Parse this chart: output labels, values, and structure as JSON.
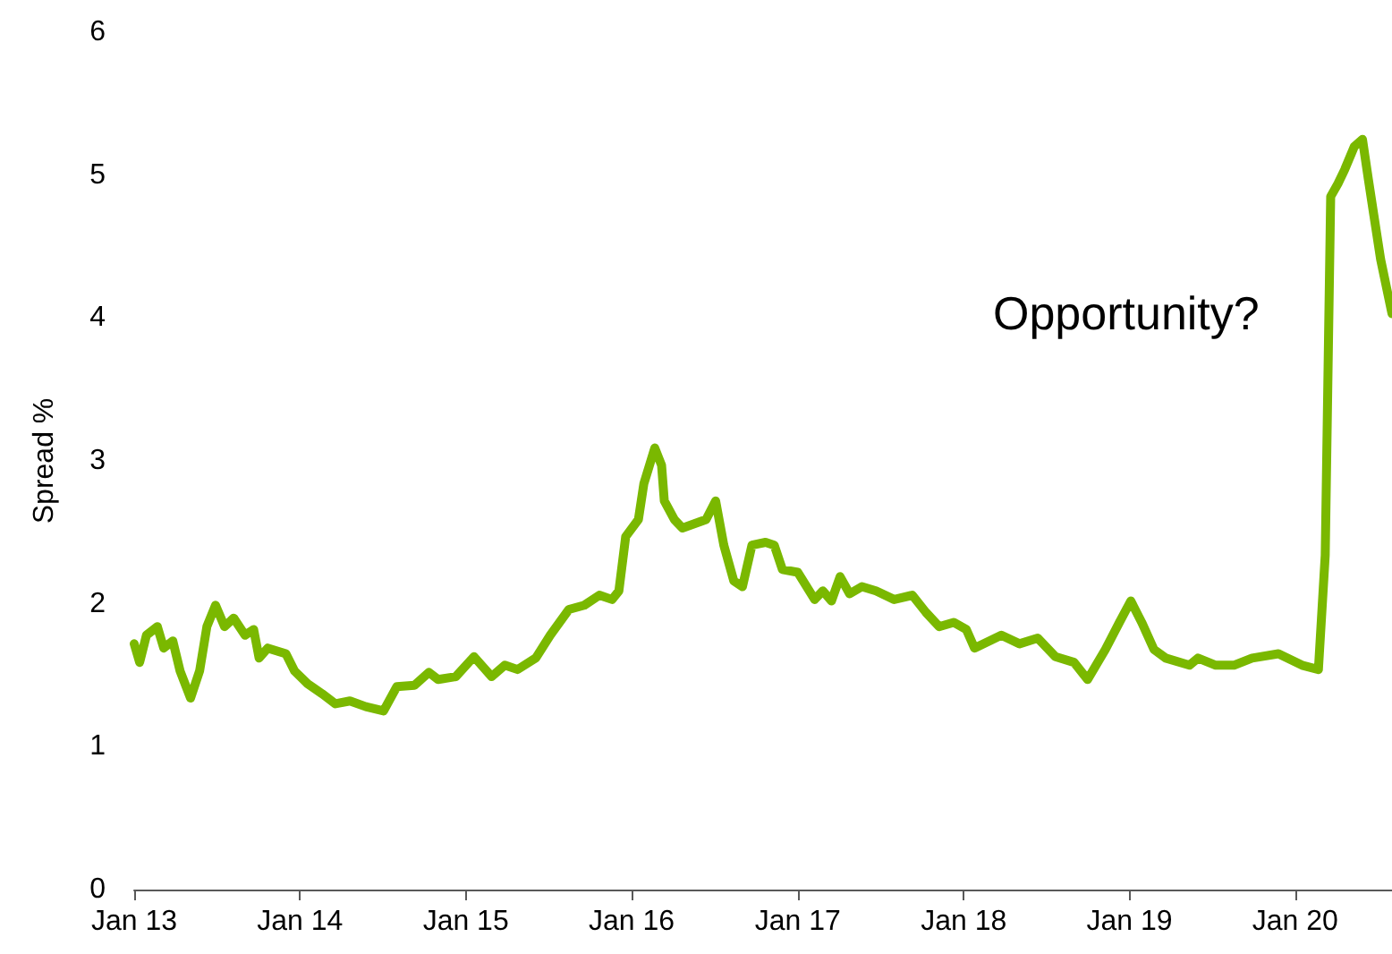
{
  "chart_data": {
    "type": "line",
    "ylabel": "Spread %",
    "annotations": [
      "Opportunity?"
    ],
    "x": [
      "2013-01-01",
      "2013-01-13",
      "2013-01-28",
      "2013-02-21",
      "2013-03-07",
      "2013-03-27",
      "2013-04-12",
      "2013-05-05",
      "2013-05-25",
      "2013-06-10",
      "2013-06-29",
      "2013-07-19",
      "2013-08-08",
      "2013-09-02",
      "2013-09-21",
      "2013-10-03",
      "2013-10-22",
      "2013-12-01",
      "2013-12-20",
      "2014-01-18",
      "2014-02-19",
      "2014-03-20",
      "2014-04-21",
      "2014-05-26",
      "2014-07-04",
      "2014-08-02",
      "2014-09-10",
      "2014-10-12",
      "2014-11-01",
      "2014-12-10",
      "2015-01-19",
      "2015-02-27",
      "2015-03-28",
      "2015-04-25",
      "2015-06-04",
      "2015-07-06",
      "2015-08-16",
      "2015-09-19",
      "2015-10-22",
      "2015-11-19",
      "2015-12-04",
      "2015-12-19",
      "2016-01-16",
      "2016-01-28",
      "2016-02-21",
      "2016-03-07",
      "2016-03-13",
      "2016-04-04",
      "2016-04-22",
      "2016-06-13",
      "2016-07-04",
      "2016-07-22",
      "2016-08-13",
      "2016-09-01",
      "2016-09-22",
      "2016-10-22",
      "2016-11-10",
      "2016-11-28",
      "2017-01-01",
      "2017-02-07",
      "2017-02-25",
      "2017-03-16",
      "2017-04-04",
      "2017-04-25",
      "2017-05-22",
      "2017-06-22",
      "2017-08-01",
      "2017-09-10",
      "2017-10-10",
      "2017-11-08",
      "2017-12-10",
      "2018-01-07",
      "2018-01-25",
      "2018-03-25",
      "2018-05-04",
      "2018-06-13",
      "2018-07-22",
      "2018-09-01",
      "2018-10-01",
      "2018-11-09",
      "2018-12-10",
      "2019-01-04",
      "2019-01-28",
      "2019-02-24",
      "2019-03-22",
      "2019-05-13",
      "2019-06-01",
      "2019-07-10",
      "2019-08-19",
      "2019-09-28",
      "2019-11-25",
      "2020-01-16",
      "2020-02-21",
      "2020-03-07",
      "2020-03-19",
      "2020-04-04",
      "2020-04-19",
      "2020-05-10",
      "2020-05-28",
      "2020-06-10",
      "2020-06-22",
      "2020-07-07",
      "2020-08-01"
    ],
    "series": [
      {
        "color": "#7ab800",
        "values": [
          1.72,
          1.59,
          1.78,
          1.84,
          1.69,
          1.74,
          1.53,
          1.34,
          1.53,
          1.84,
          1.99,
          1.84,
          1.9,
          1.78,
          1.82,
          1.62,
          1.69,
          1.65,
          1.53,
          1.44,
          1.37,
          1.3,
          1.32,
          1.28,
          1.25,
          1.42,
          1.43,
          1.52,
          1.47,
          1.49,
          1.63,
          1.49,
          1.57,
          1.54,
          1.62,
          1.78,
          1.96,
          1.99,
          2.06,
          2.03,
          2.09,
          2.47,
          2.59,
          2.84,
          3.09,
          2.97,
          2.72,
          2.59,
          2.53,
          2.59,
          2.72,
          2.41,
          2.16,
          2.12,
          2.41,
          2.43,
          2.41,
          2.24,
          2.22,
          2.03,
          2.09,
          2.02,
          2.19,
          2.07,
          2.12,
          2.09,
          2.03,
          2.06,
          1.94,
          1.84,
          1.87,
          1.82,
          1.69,
          1.78,
          1.72,
          1.76,
          1.63,
          1.59,
          1.47,
          1.68,
          1.87,
          2.02,
          1.87,
          1.68,
          1.62,
          1.57,
          1.62,
          1.57,
          1.57,
          1.62,
          1.65,
          1.57,
          1.54,
          2.34,
          4.85,
          4.94,
          5.04,
          5.2,
          5.25,
          4.97,
          4.72,
          4.41,
          4.03
        ]
      }
    ],
    "xlim": [
      "2013-01-01",
      "2020-08-01"
    ],
    "xticks": [
      {
        "value": "2013-01-01",
        "label": "Jan 13"
      },
      {
        "value": "2014-01-01",
        "label": "Jan 14"
      },
      {
        "value": "2015-01-01",
        "label": "Jan 15"
      },
      {
        "value": "2016-01-01",
        "label": "Jan 16"
      },
      {
        "value": "2017-01-01",
        "label": "Jan 17"
      },
      {
        "value": "2018-01-01",
        "label": "Jan 18"
      },
      {
        "value": "2019-01-01",
        "label": "Jan 19"
      },
      {
        "value": "2020-01-01",
        "label": "Jan 20"
      }
    ],
    "ylim": [
      0,
      6
    ],
    "yticks": [
      0,
      1,
      2,
      3,
      4,
      5,
      6
    ],
    "grid": false,
    "marker": "none",
    "line_style": "solid"
  }
}
